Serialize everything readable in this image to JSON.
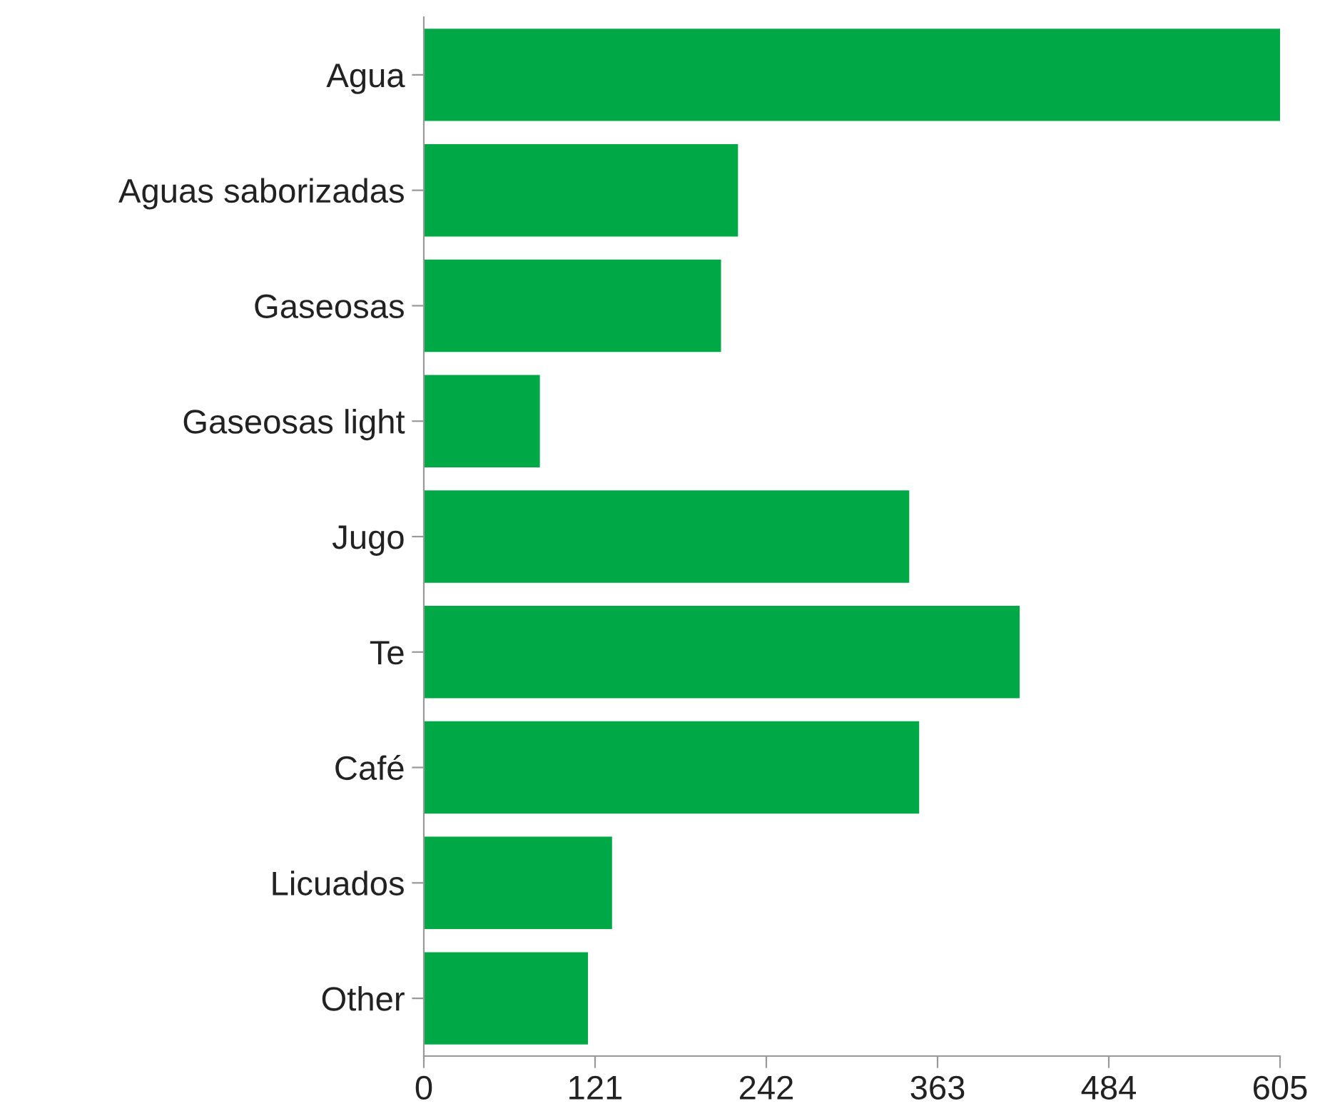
{
  "chart_data": {
    "type": "bar",
    "orientation": "horizontal",
    "categories": [
      "Agua",
      "Aguas saborizadas",
      "Gaseosas",
      "Gaseosas light",
      "Jugo",
      "Te",
      "Café",
      "Licuados",
      "Other"
    ],
    "values": [
      605,
      222,
      210,
      82,
      343,
      421,
      350,
      133,
      116
    ],
    "color": "#00a846",
    "xlim": [
      0,
      605
    ],
    "xticks": [
      0,
      121,
      242,
      363,
      484,
      605
    ],
    "grid": false
  }
}
